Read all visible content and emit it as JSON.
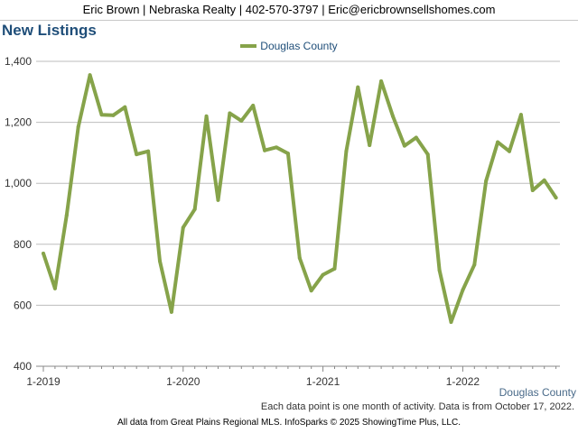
{
  "header": {
    "contact": "Eric Brown | Nebraska Realty | 402-570-3797 | Eric@ericbrownsellshomes.com"
  },
  "chart_data": {
    "type": "line",
    "title": "New Listings",
    "y_ticks": [
      "400",
      "600",
      "800",
      "1,000",
      "1,200",
      "1,400"
    ],
    "ylim": [
      400,
      1400
    ],
    "x_ticks": [
      "1-2019",
      "1-2020",
      "1-2021",
      "1-2022"
    ],
    "series": [
      {
        "name": "Douglas County",
        "color": "#86a34a",
        "values": [
          770,
          655,
          895,
          1185,
          1355,
          1225,
          1223,
          1250,
          1095,
          1105,
          745,
          578,
          855,
          915,
          1220,
          945,
          1230,
          1205,
          1255,
          1108,
          1118,
          1098,
          755,
          648,
          700,
          720,
          1105,
          1315,
          1125,
          1335,
          1220,
          1123,
          1150,
          1095,
          715,
          545,
          650,
          733,
          1008,
          1135,
          1105,
          1225,
          977,
          1010,
          953
        ]
      }
    ],
    "grid": true
  },
  "footer": {
    "county_label": "Douglas County",
    "note": "Each data point is one month of activity. Data is from October 17, 2022.",
    "source": "All data from Great Plains Regional MLS. InfoSparks © 2025 ShowingTime Plus, LLC."
  }
}
